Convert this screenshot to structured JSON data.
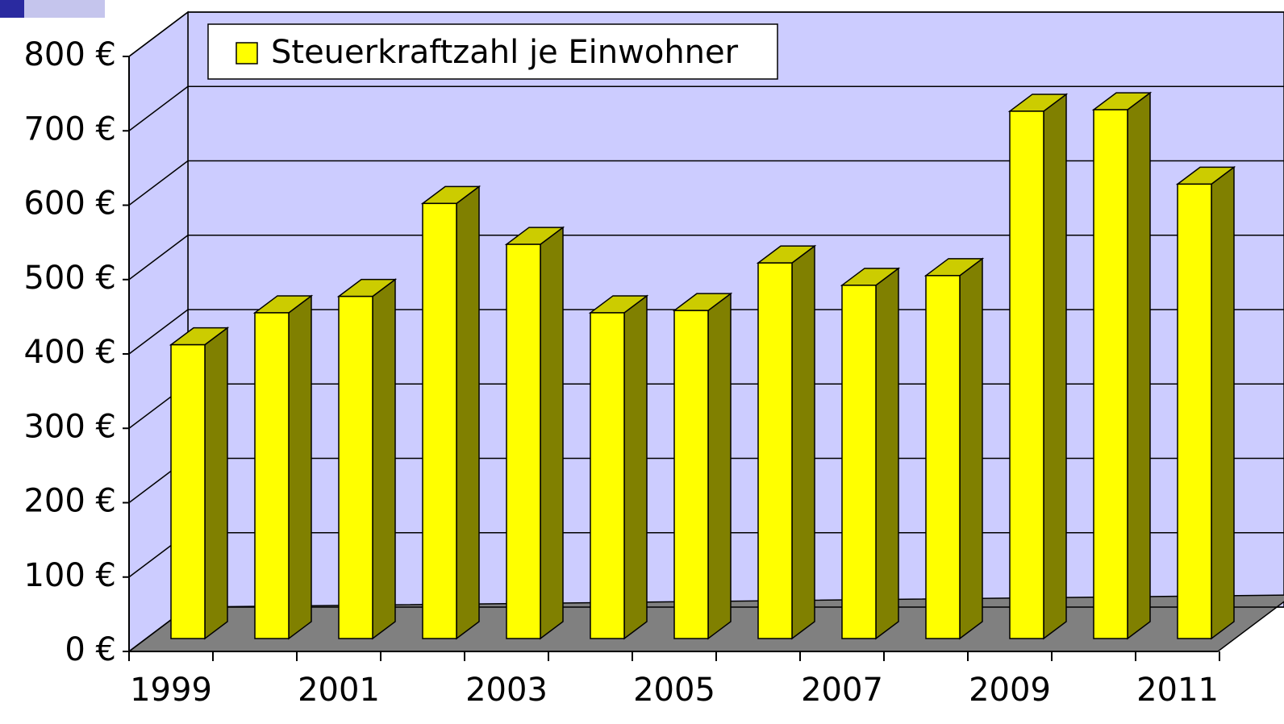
{
  "chart_data": {
    "type": "bar3d",
    "categories": [
      "1999",
      null,
      "2001",
      null,
      "2003",
      null,
      "2005",
      null,
      "2007",
      null,
      "2009",
      null,
      "2011"
    ],
    "series": [
      {
        "name": "Steuerkraftzahl je Einwohner",
        "color": "#ffff00",
        "values": [
          395,
          438,
          460,
          585,
          530,
          438,
          441,
          505,
          475,
          488,
          709,
          711,
          611
        ]
      }
    ],
    "ylim": [
      0,
      800
    ],
    "yticks": [
      {
        "value": 0,
        "label": "0 €"
      },
      {
        "value": 100,
        "label": "100 €"
      },
      {
        "value": 200,
        "label": "200 €"
      },
      {
        "value": 300,
        "label": "300 €"
      },
      {
        "value": 400,
        "label": "400 €"
      },
      {
        "value": 500,
        "label": "500 €"
      },
      {
        "value": 600,
        "label": "600 €"
      },
      {
        "value": 700,
        "label": "700 €"
      },
      {
        "value": 800,
        "label": "800 €"
      }
    ],
    "grid": true
  }
}
